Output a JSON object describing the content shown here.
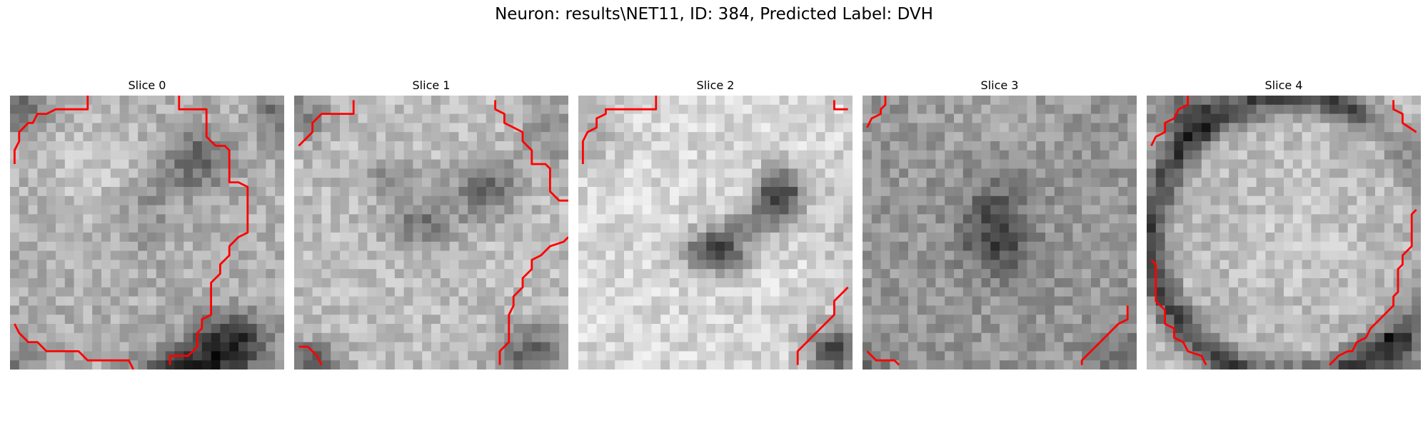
{
  "figure": {
    "suptitle": "Neuron: results\\NET11, ID: 384, Predicted Label: DVH",
    "overlay_color": "#ff0000"
  },
  "slices": [
    {
      "title": "Slice 0"
    },
    {
      "title": "Slice 1"
    },
    {
      "title": "Slice 2"
    },
    {
      "title": "Slice 3"
    },
    {
      "title": "Slice 4"
    }
  ]
}
